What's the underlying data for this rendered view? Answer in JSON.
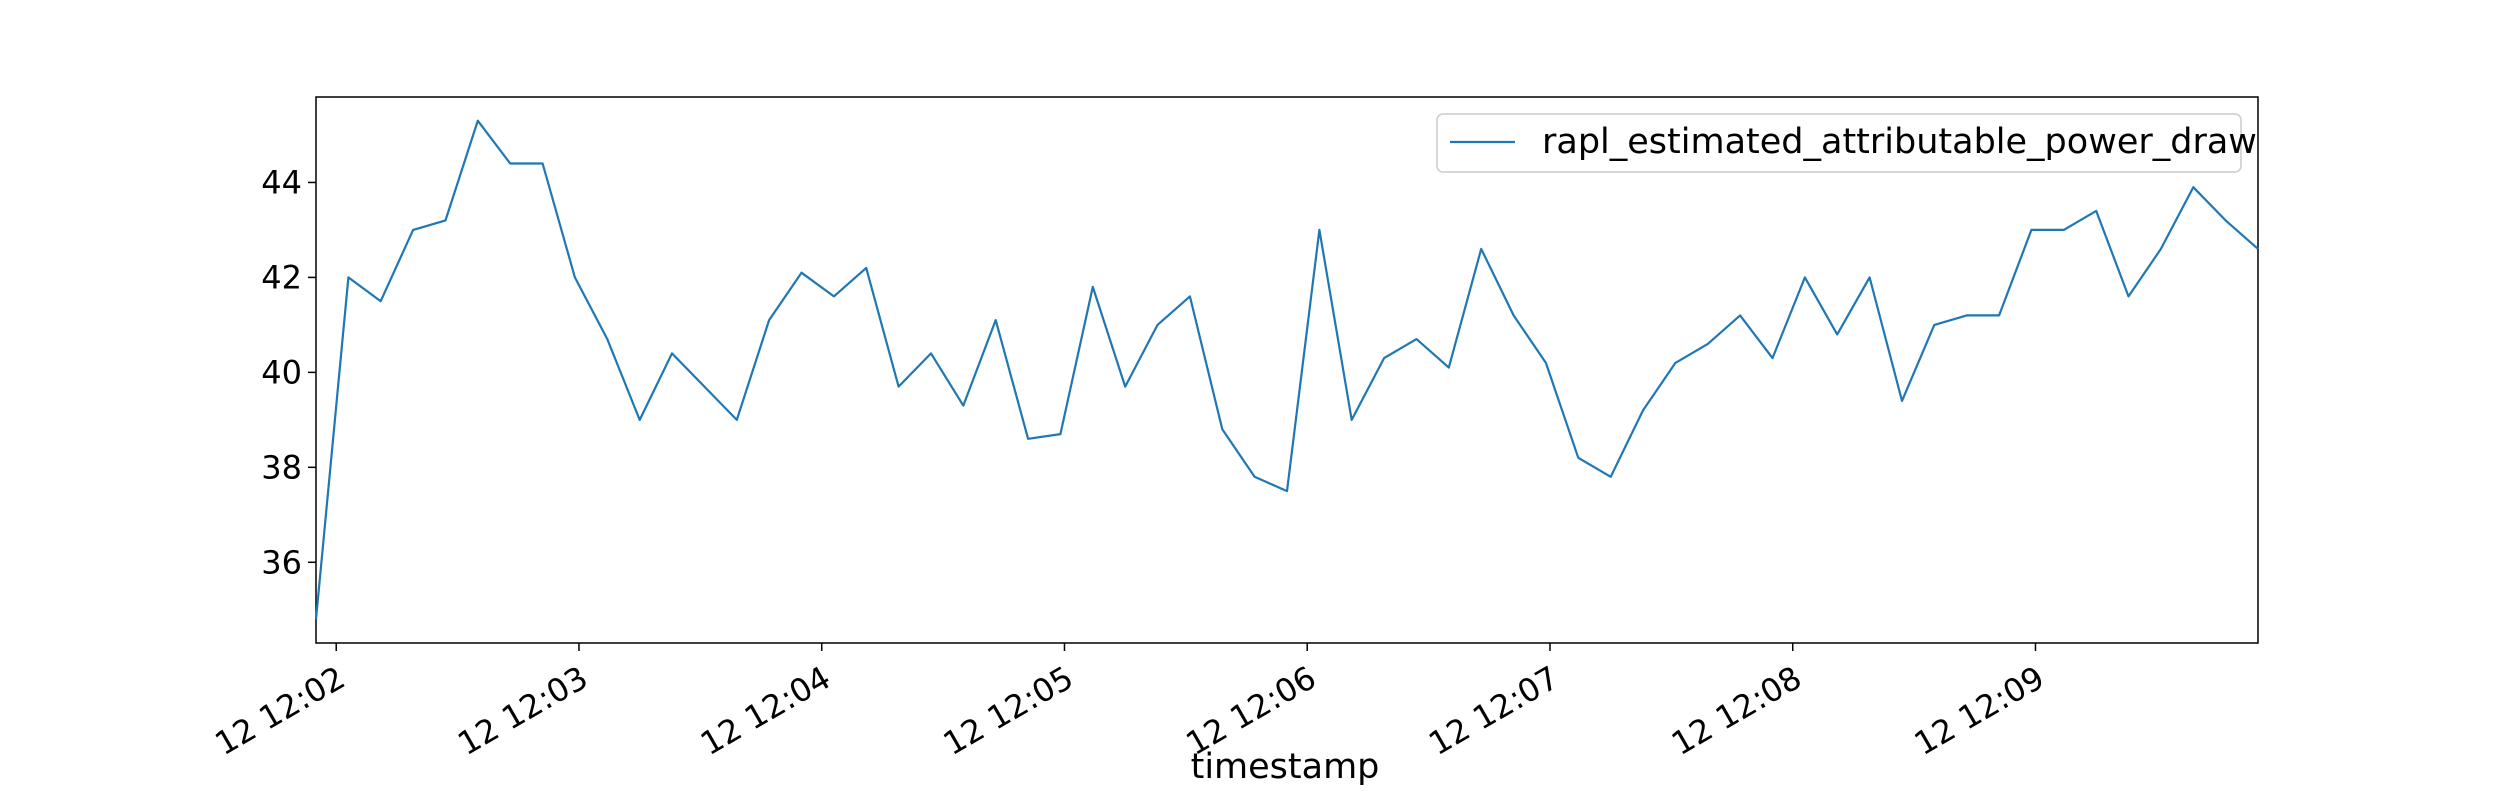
{
  "chart_data": {
    "type": "line",
    "xlabel": "timestamp",
    "ylabel": "",
    "x_tick_labels": [
      "12 12:02",
      "12 12:03",
      "12 12:04",
      "12 12:05",
      "12 12:06",
      "12 12:07",
      "12 12:08",
      "12 12:09"
    ],
    "y_tick_labels": [
      "36",
      "38",
      "40",
      "42",
      "44"
    ],
    "y_ticks": [
      36,
      38,
      40,
      42,
      44
    ],
    "ylim": [
      34.3,
      45.8
    ],
    "legend_placement": "top-right",
    "grid": false,
    "series": [
      {
        "name": "rapl_estimated_attributable_power_draw",
        "color": "#1f77b4",
        "x": [
          "12:01:55",
          "12:02:03",
          "12:02:11",
          "12:02:19",
          "12:02:27",
          "12:02:35",
          "12:02:43",
          "12:02:51",
          "12:02:59",
          "12:03:07",
          "12:03:15",
          "12:03:23",
          "12:03:31",
          "12:03:39",
          "12:03:47",
          "12:03:55",
          "12:04:03",
          "12:04:11",
          "12:04:19",
          "12:04:27",
          "12:04:35",
          "12:04:43",
          "12:04:51",
          "12:04:59",
          "12:05:07",
          "12:05:15",
          "12:05:23",
          "12:05:31",
          "12:05:39",
          "12:05:47",
          "12:05:55",
          "12:06:03",
          "12:06:11",
          "12:06:19",
          "12:06:27",
          "12:06:35",
          "12:06:43",
          "12:06:51",
          "12:06:59",
          "12:07:07",
          "12:07:15",
          "12:07:23",
          "12:07:31",
          "12:07:39",
          "12:07:47",
          "12:07:55",
          "12:08:03",
          "12:08:11",
          "12:08:19",
          "12:08:27",
          "12:08:35",
          "12:08:43",
          "12:08:51",
          "12:08:59",
          "12:09:07",
          "12:09:15",
          "12:09:23",
          "12:09:31",
          "12:09:39",
          "12:09:47",
          "12:09:55"
        ],
        "values": [
          34.8,
          42.0,
          41.5,
          43.0,
          43.2,
          45.3,
          44.4,
          44.4,
          42.0,
          40.7,
          39.0,
          40.4,
          39.7,
          39.0,
          41.1,
          42.1,
          41.6,
          42.2,
          39.7,
          40.4,
          39.3,
          41.1,
          38.6,
          38.7,
          41.8,
          39.7,
          41.0,
          41.6,
          38.8,
          37.8,
          37.5,
          43.0,
          39.0,
          40.3,
          40.7,
          40.1,
          42.6,
          41.2,
          40.2,
          38.2,
          37.8,
          39.2,
          40.2,
          40.6,
          41.2,
          40.3,
          42.0,
          40.8,
          42.0,
          39.4,
          41.0,
          41.2,
          41.2,
          43.0,
          43.0,
          43.4,
          41.6,
          42.6,
          43.9,
          43.2,
          42.6
        ]
      }
    ]
  }
}
